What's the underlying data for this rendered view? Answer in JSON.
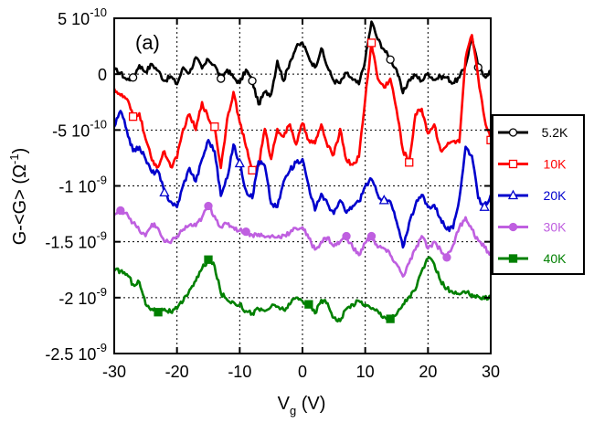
{
  "chart_data": {
    "type": "line",
    "panel_label": "(a)",
    "xlabel": "V",
    "xlabel_sub": "g",
    "xlabel_unit": " (V)",
    "ylabel": "G-<G> (Ω",
    "ylabel_sup": "-1",
    "ylabel_end": ")",
    "xlim": [
      -30,
      30
    ],
    "ylim": [
      -2.5e-09,
      5e-10
    ],
    "x_ticks": [
      -30,
      -20,
      -10,
      0,
      10,
      20,
      30
    ],
    "x_tick_labels": [
      "-30",
      "-20",
      "-10",
      "0",
      "10",
      "20",
      "30"
    ],
    "y_ticks": [
      {
        "value": 5e-10,
        "mantissa": "5 10",
        "exp": "-10"
      },
      {
        "value": 0,
        "mantissa": "0",
        "exp": ""
      },
      {
        "value": -5e-10,
        "mantissa": "-5 10",
        "exp": "-10"
      },
      {
        "value": -1e-09,
        "mantissa": "-1 10",
        "exp": "-9"
      },
      {
        "value": -1.5e-09,
        "mantissa": "-1.5 10",
        "exp": "-9"
      },
      {
        "value": -2e-09,
        "mantissa": "-2 10",
        "exp": "-9"
      },
      {
        "value": -2.5e-09,
        "mantissa": "-2.5 10",
        "exp": "-9"
      }
    ],
    "grid": "dotted",
    "legend_position": "right",
    "series": [
      {
        "name": "5.2K",
        "color": "#000000",
        "marker": "circle-open",
        "x": [
          -30,
          -29,
          -28,
          -27,
          -26,
          -25,
          -24,
          -23,
          -22,
          -21,
          -20,
          -19,
          -18,
          -17,
          -16,
          -15,
          -14,
          -13,
          -12,
          -11,
          -10,
          -9,
          -8,
          -7,
          -6,
          -5,
          -4,
          -3,
          -2,
          -1,
          0,
          1,
          2,
          3,
          4,
          5,
          6,
          7,
          8,
          9,
          10,
          11,
          12,
          13,
          14,
          15,
          16,
          17,
          18,
          19,
          20,
          21,
          22,
          23,
          24,
          25,
          26,
          27,
          28,
          29,
          30
        ],
        "y": [
          4e-11,
          1e-11,
          -5e-11,
          -3e-11,
          8e-11,
          2e-11,
          9e-11,
          3e-11,
          -6e-11,
          -2e-11,
          -9e-11,
          6e-11,
          1e-11,
          1.5e-10,
          5e-11,
          1.3e-10,
          8e-11,
          -4e-11,
          4e-11,
          -3e-11,
          -8e-11,
          4e-11,
          -6e-11,
          -2.7e-10,
          -1.6e-10,
          -1.8e-10,
          1.2e-10,
          -6e-11,
          1.1e-10,
          2.4e-10,
          2.8e-10,
          1.5e-10,
          6e-11,
          2.3e-10,
          6e-11,
          -6e-11,
          -8e-11,
          1e-11,
          -5e-11,
          -9e-11,
          1.3e-10,
          4.7e-10,
          3.1e-10,
          2.2e-10,
          1.3e-10,
          4e-11,
          -1.7e-10,
          -5e-11,
          -1e-11,
          -6e-11,
          1e-11,
          -5e-11,
          -2e-11,
          -3e-11,
          -8e-11,
          -3e-11,
          8e-11,
          3.4e-10,
          6e-11,
          -2e-11,
          3e-11
        ],
        "marker_x": [
          -27,
          -13,
          -8,
          14,
          28
        ]
      },
      {
        "name": "10K",
        "color": "#ff0000",
        "marker": "square-open",
        "x": [
          -30,
          -29,
          -28,
          -27,
          -26,
          -25,
          -24,
          -23,
          -22,
          -21,
          -20,
          -19,
          -18,
          -17,
          -16,
          -15,
          -14,
          -13,
          -12,
          -11,
          -10,
          -9,
          -8,
          -7,
          -6,
          -5,
          -4,
          -3,
          -2,
          -1,
          0,
          1,
          2,
          3,
          4,
          5,
          6,
          7,
          8,
          9,
          10,
          11,
          12,
          13,
          14,
          15,
          16,
          17,
          18,
          19,
          20,
          21,
          22,
          23,
          24,
          25,
          26,
          27,
          28,
          29,
          30
        ],
        "y": [
          -1.3e-10,
          -1.9e-10,
          -2.2e-10,
          -3.8e-10,
          -3.5e-10,
          -5.8e-10,
          -7.7e-10,
          -8.3e-10,
          -6.9e-10,
          -8.3e-10,
          -7.5e-10,
          -4.9e-10,
          -3.6e-10,
          -5e-10,
          -2.5e-10,
          -4e-10,
          -4.7e-10,
          -8.4e-10,
          -4e-10,
          -1.6e-10,
          -4.3e-10,
          -6.5e-10,
          -8.6e-10,
          -8.2e-10,
          -4.9e-10,
          -7.6e-10,
          -4.9e-10,
          -5.6e-10,
          -4.5e-10,
          -6.3e-10,
          -4.4e-10,
          -5.9e-10,
          -6.2e-10,
          -4.5e-10,
          -6.5e-10,
          -7.2e-10,
          -4.9e-10,
          -7.7e-10,
          -8.1e-10,
          -7.4e-10,
          -2.2e-10,
          2.8e-10,
          -4e-11,
          -1.2e-10,
          -4e-11,
          -3.2e-10,
          -6.8e-10,
          -7.9e-10,
          -3.6e-10,
          -3.1e-10,
          -5.3e-10,
          -4.5e-10,
          -6.8e-10,
          -6.4e-10,
          -6e-10,
          -6.1e-10,
          1.4e-10,
          3.5e-10,
          -3e-11,
          -3.9e-10,
          -5.9e-10
        ],
        "marker_x": [
          -27,
          -14,
          -8,
          11,
          17,
          30
        ]
      },
      {
        "name": "20K",
        "color": "#0000cc",
        "marker": "triangle-open",
        "x": [
          -30,
          -29,
          -28,
          -27,
          -26,
          -25,
          -24,
          -23,
          -22,
          -21,
          -20,
          -19,
          -18,
          -17,
          -16,
          -15,
          -14,
          -13,
          -12,
          -11,
          -10,
          -9,
          -8,
          -7,
          -6,
          -5,
          -4,
          -3,
          -2,
          -1,
          0,
          1,
          2,
          3,
          4,
          5,
          6,
          7,
          8,
          9,
          10,
          11,
          12,
          13,
          14,
          15,
          16,
          17,
          18,
          19,
          20,
          21,
          22,
          23,
          24,
          25,
          26,
          27,
          28,
          29,
          30
        ],
        "y": [
          -4.7e-10,
          -3.3e-10,
          -5e-10,
          -6.9e-10,
          -6.5e-10,
          -7.6e-10,
          -8.8e-10,
          -8.7e-10,
          -1.06e-09,
          -1.14e-09,
          -1.19e-09,
          -9.9e-10,
          -8.4e-10,
          -9.6e-10,
          -7.6e-10,
          -5.9e-10,
          -6.9e-10,
          -1.09e-09,
          -9.3e-10,
          -6.3e-10,
          -8e-10,
          -1.04e-09,
          -1.11e-09,
          -7.8e-10,
          -8.2e-10,
          -1.16e-09,
          -1.19e-09,
          -9.6e-10,
          -8.6e-10,
          -7.9e-10,
          -7.6e-10,
          -1e-09,
          -1.22e-09,
          -1.07e-09,
          -1.16e-09,
          -1.25e-09,
          -1.13e-09,
          -1.24e-09,
          -1.18e-09,
          -1.14e-09,
          -1e-09,
          -9.4e-10,
          -1.08e-09,
          -1.13e-09,
          -1.14e-09,
          -1.32e-09,
          -1.55e-09,
          -1.33e-09,
          -1.17e-09,
          -1.08e-09,
          -1.19e-09,
          -1.17e-09,
          -1.29e-09,
          -1.39e-09,
          -1.38e-09,
          -1.11e-09,
          -6.5e-10,
          -7.3e-10,
          -1.11e-09,
          -1.19e-09,
          -1.08e-09
        ],
        "marker_x": [
          -22,
          -10,
          13,
          29
        ]
      },
      {
        "name": "30K",
        "color": "#bf5fe0",
        "marker": "circle-filled",
        "x": [
          -30,
          -29,
          -28,
          -27,
          -26,
          -25,
          -24,
          -23,
          -22,
          -21,
          -20,
          -19,
          -18,
          -17,
          -16,
          -15,
          -14,
          -13,
          -12,
          -11,
          -10,
          -9,
          -8,
          -7,
          -6,
          -5,
          -4,
          -3,
          -2,
          -1,
          0,
          1,
          2,
          3,
          4,
          5,
          6,
          7,
          8,
          9,
          10,
          11,
          12,
          13,
          14,
          15,
          16,
          17,
          18,
          19,
          20,
          21,
          22,
          23,
          24,
          25,
          26,
          27,
          28,
          29,
          30
        ],
        "y": [
          -1.26e-09,
          -1.22e-09,
          -1.24e-09,
          -1.33e-09,
          -1.4e-09,
          -1.45e-09,
          -1.34e-09,
          -1.38e-09,
          -1.5e-09,
          -1.51e-09,
          -1.45e-09,
          -1.39e-09,
          -1.35e-09,
          -1.36e-09,
          -1.28e-09,
          -1.18e-09,
          -1.27e-09,
          -1.37e-09,
          -1.34e-09,
          -1.37e-09,
          -1.4e-09,
          -1.41e-09,
          -1.44e-09,
          -1.43e-09,
          -1.46e-09,
          -1.45e-09,
          -1.46e-09,
          -1.44e-09,
          -1.42e-09,
          -1.38e-09,
          -1.37e-09,
          -1.47e-09,
          -1.57e-09,
          -1.5e-09,
          -1.46e-09,
          -1.54e-09,
          -1.5e-09,
          -1.45e-09,
          -1.55e-09,
          -1.62e-09,
          -1.51e-09,
          -1.45e-09,
          -1.55e-09,
          -1.56e-09,
          -1.62e-09,
          -1.7e-09,
          -1.81e-09,
          -1.69e-09,
          -1.57e-09,
          -1.45e-09,
          -1.56e-09,
          -1.5e-09,
          -1.57e-09,
          -1.64e-09,
          -1.53e-09,
          -1.37e-09,
          -1.28e-09,
          -1.39e-09,
          -1.49e-09,
          -1.55e-09,
          -1.62e-09
        ],
        "marker_x": [
          -29,
          -15,
          -9,
          7,
          11,
          23
        ]
      },
      {
        "name": "40K",
        "color": "#008000",
        "marker": "square-filled",
        "x": [
          -30,
          -29,
          -28,
          -27,
          -26,
          -25,
          -24,
          -23,
          -22,
          -21,
          -20,
          -19,
          -18,
          -17,
          -16,
          -15,
          -14,
          -13,
          -12,
          -11,
          -10,
          -9,
          -8,
          -7,
          -6,
          -5,
          -4,
          -3,
          -2,
          -1,
          0,
          1,
          2,
          3,
          4,
          5,
          6,
          7,
          8,
          9,
          10,
          11,
          12,
          13,
          14,
          15,
          16,
          17,
          18,
          19,
          20,
          21,
          22,
          23,
          24,
          25,
          26,
          27,
          28,
          29,
          30
        ],
        "y": [
          -1.76e-09,
          -1.76e-09,
          -1.79e-09,
          -1.88e-09,
          -1.86e-09,
          -2.06e-09,
          -2.1e-09,
          -2.13e-09,
          -2.1e-09,
          -2.13e-09,
          -2.1e-09,
          -2.03e-09,
          -1.93e-09,
          -1.85e-09,
          -1.74e-09,
          -1.66e-09,
          -1.72e-09,
          -1.96e-09,
          -2.02e-09,
          -2.04e-09,
          -2.06e-09,
          -2.12e-09,
          -2.14e-09,
          -2.1e-09,
          -2.12e-09,
          -2.08e-09,
          -2.08e-09,
          -2.11e-09,
          -2.06e-09,
          -2e-09,
          -2.03e-09,
          -2.06e-09,
          -2.14e-09,
          -2.02e-09,
          -2.05e-09,
          -2.18e-09,
          -2.21e-09,
          -2.1e-09,
          -2.06e-09,
          -2.03e-09,
          -2.06e-09,
          -2.1e-09,
          -2.12e-09,
          -2.17e-09,
          -2.19e-09,
          -2.15e-09,
          -2.06e-09,
          -1.99e-09,
          -1.93e-09,
          -1.76e-09,
          -1.65e-09,
          -1.7e-09,
          -1.85e-09,
          -1.92e-09,
          -1.96e-09,
          -1.97e-09,
          -1.96e-09,
          -1.97e-09,
          -1.99e-09,
          -2.01e-09,
          -1.98e-09
        ],
        "marker_x": [
          -23,
          -15,
          1,
          14
        ]
      }
    ]
  }
}
